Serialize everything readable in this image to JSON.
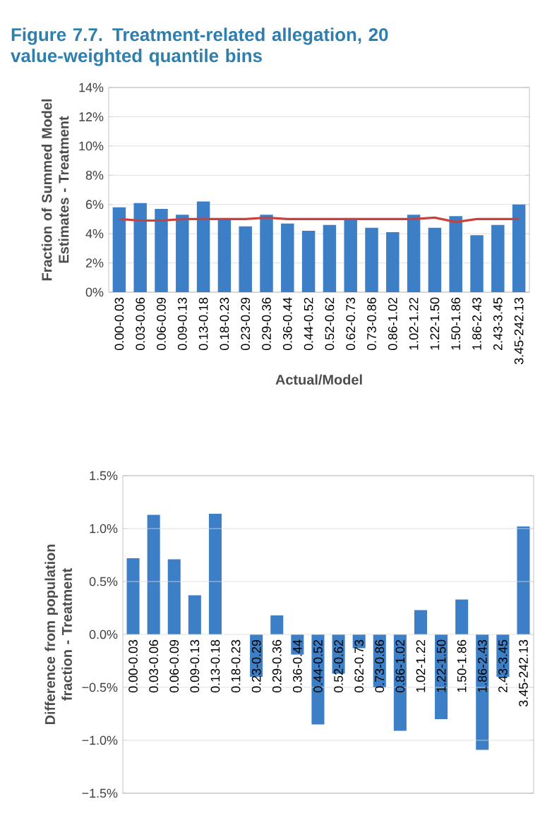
{
  "chart_data": [
    {
      "type": "bar",
      "title": "Figure 7.7.  Treatment-related allegation, 20 value-weighted quantile bins",
      "xlabel": "Actual/Model",
      "ylabel": "Fraction of Summed Model Estimates - Treatment",
      "categories": [
        "0.00-0.03",
        "0.03-0.06",
        "0.06-0.09",
        "0.09-0.13",
        "0.13-0.18",
        "0.18-0.23",
        "0.23-0.29",
        "0.29-0.36",
        "0.36-0.44",
        "0.44-0.52",
        "0.52-0.62",
        "0.62-0.73",
        "0.73-0.86",
        "0.86-1.02",
        "1.02-1.22",
        "1.22-1.50",
        "1.50-1.86",
        "1.86-2.43",
        "2.43-3.45",
        "3.45-242.13"
      ],
      "series": [
        {
          "color": "#3d7fc6",
          "values": [
            5.8,
            6.1,
            5.7,
            5.3,
            6.2,
            5.0,
            4.5,
            5.3,
            4.7,
            4.2,
            4.6,
            5.0,
            4.4,
            4.1,
            5.3,
            4.4,
            5.2,
            3.9,
            4.6,
            6.0
          ]
        },
        {
          "type": "line",
          "color": "#c9413c",
          "values": [
            5.0,
            4.9,
            4.9,
            5.0,
            5.0,
            5.0,
            5.0,
            5.1,
            5.0,
            5.0,
            5.0,
            5.0,
            5.0,
            5.0,
            5.0,
            5.1,
            4.8,
            5.0,
            5.0,
            5.0
          ]
        }
      ],
      "ylim": [
        0,
        14
      ],
      "yticks": [
        {
          "value": 0,
          "label": "0%"
        },
        {
          "value": 2,
          "label": "2%"
        },
        {
          "value": 4,
          "label": "4%"
        },
        {
          "value": 6,
          "label": "6%"
        },
        {
          "value": 8,
          "label": "8%"
        },
        {
          "value": 10,
          "label": "10%"
        },
        {
          "value": 12,
          "label": "12%"
        },
        {
          "value": 14,
          "label": "14%"
        }
      ],
      "grid": "y"
    },
    {
      "type": "bar",
      "ylabel": "Difference from population fraction - Treatment",
      "categories": [
        "0.00-0.03",
        "0.03-0.06",
        "0.06-0.09",
        "0.09-0.13",
        "0.13-0.18",
        "0.18-0.23",
        "0.23-0.29",
        "0.29-0.36",
        "0.36-0.44",
        "0.44-0.52",
        "0.52-0.62",
        "0.62-0.73",
        "0.73-0.86",
        "0.86-1.02",
        "1.02-1.22",
        "1.22-1.50",
        "1.50-1.86",
        "1.86-2.43",
        "2.43-3.45",
        "3.45-242.13"
      ],
      "series": [
        {
          "color": "#3d7fc6",
          "values": [
            0.72,
            1.13,
            0.71,
            0.37,
            1.14,
            0.0,
            -0.4,
            0.18,
            -0.19,
            -0.85,
            -0.37,
            -0.13,
            -0.5,
            -0.91,
            0.23,
            -0.8,
            0.33,
            -1.09,
            -0.4,
            1.02
          ]
        }
      ],
      "ylim": [
        -1.5,
        1.5
      ],
      "yticks": [
        {
          "value": -1.5,
          "label": "−1.5%"
        },
        {
          "value": -1.0,
          "label": "−1.0%"
        },
        {
          "value": -0.5,
          "label": "−0.5%"
        },
        {
          "value": 0.0,
          "label": "0.0%"
        },
        {
          "value": 0.5,
          "label": "0.5%"
        },
        {
          "value": 1.0,
          "label": "1.0%"
        },
        {
          "value": 1.5,
          "label": "1.5%"
        }
      ],
      "grid": "y"
    }
  ]
}
